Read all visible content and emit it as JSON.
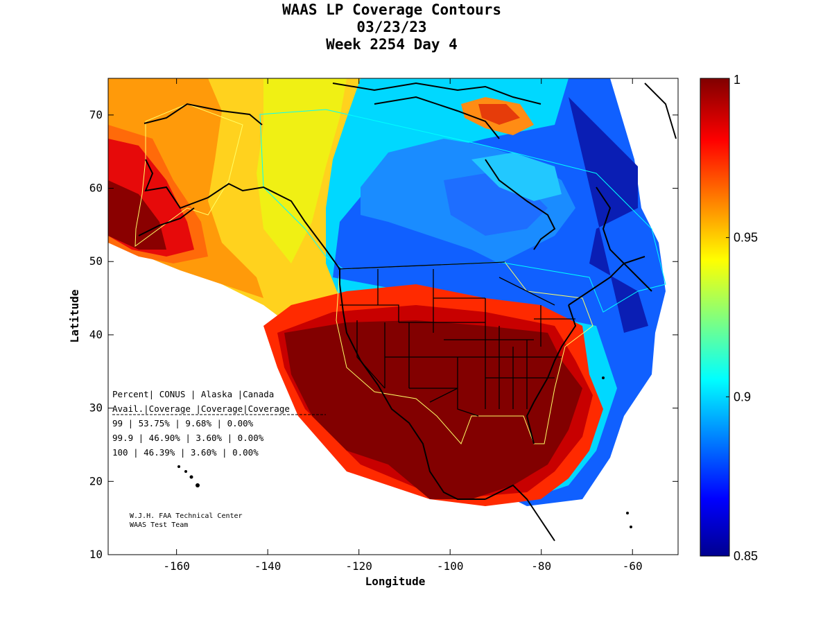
{
  "title": {
    "line1": "WAAS LP Coverage Contours",
    "line2": "03/23/23",
    "line3": "Week 2254 Day 4"
  },
  "axes": {
    "xlabel": "Longitude",
    "ylabel": "Latitude",
    "xlim": [
      -175,
      -50
    ],
    "ylim": [
      10,
      75
    ],
    "xticks": [
      "-160",
      "-140",
      "-120",
      "-100",
      "-80",
      "-60"
    ],
    "yticks": [
      "10",
      "20",
      "30",
      "40",
      "50",
      "60",
      "70"
    ]
  },
  "colorbar": {
    "range": [
      0.85,
      1
    ],
    "ticks": [
      "1",
      "0.95",
      "0.9",
      "0.85"
    ],
    "colormap": "jet"
  },
  "table": {
    "header1": "Percent| CONUS   | Alaska |Canada",
    "header2": " Avail.|Coverage |Coverage|Coverage",
    "rows": [
      "  99   | 53.75% | 9.68% | 0.00%",
      "  99.9 | 46.90% | 3.60% | 0.00%",
      "  100  | 46.39% | 3.60% | 0.00%"
    ]
  },
  "credit": {
    "line1": "W.J.H. FAA Technical Center",
    "line2": "WAAS Test Team"
  },
  "colors": {
    "dark_red": "#800000",
    "red": "#ff0000",
    "orange": "#ff8c00",
    "yellow": "#ffd700",
    "cyan": "#00ffff",
    "light_blue": "#1e90ff",
    "blue": "#0000ff",
    "dark_blue": "#00008b",
    "service_boundary": "#ffff66",
    "canada_boundary": "#00ffff"
  }
}
